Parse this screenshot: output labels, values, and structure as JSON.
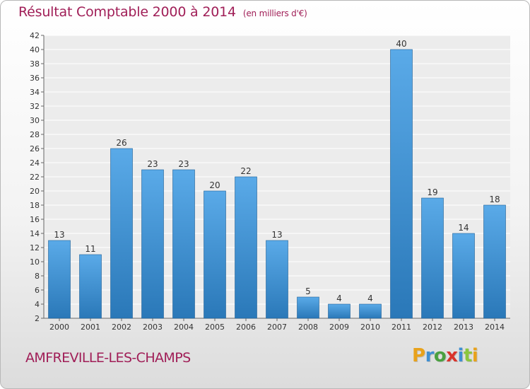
{
  "header": {
    "title": "Résultat Comptable 2000 à 2014",
    "unit": "(en milliers d'€)"
  },
  "footer": {
    "commune": "AMFREVILLE-LES-CHAMPS",
    "logo": "Proxiti"
  },
  "colors": {
    "title": "#a01e57",
    "bar_light": "#5aaae8",
    "bar_dark": "#2a78b8",
    "logo_letters": [
      "#e8a21c",
      "#3f8fd2",
      "#4aa040",
      "#d9342b",
      "#3f8fd2",
      "#8cc63e",
      "#e8a21c"
    ]
  },
  "chart_data": {
    "type": "bar",
    "title": "Résultat Comptable 2000 à 2014",
    "subtitle": "(en milliers d'€)",
    "categories": [
      "2000",
      "2001",
      "2002",
      "2003",
      "2004",
      "2005",
      "2006",
      "2007",
      "2008",
      "2009",
      "2010",
      "2011",
      "2012",
      "2013",
      "2014"
    ],
    "values": [
      13,
      11,
      26,
      23,
      23,
      20,
      22,
      13,
      5,
      4,
      4,
      40,
      19,
      14,
      18
    ],
    "ylim": [
      2,
      42
    ],
    "yticks": [
      2,
      4,
      6,
      8,
      10,
      12,
      14,
      16,
      18,
      20,
      22,
      24,
      26,
      28,
      30,
      32,
      34,
      36,
      38,
      40,
      42
    ],
    "grid": true,
    "legend": "none",
    "data_labels": true
  }
}
